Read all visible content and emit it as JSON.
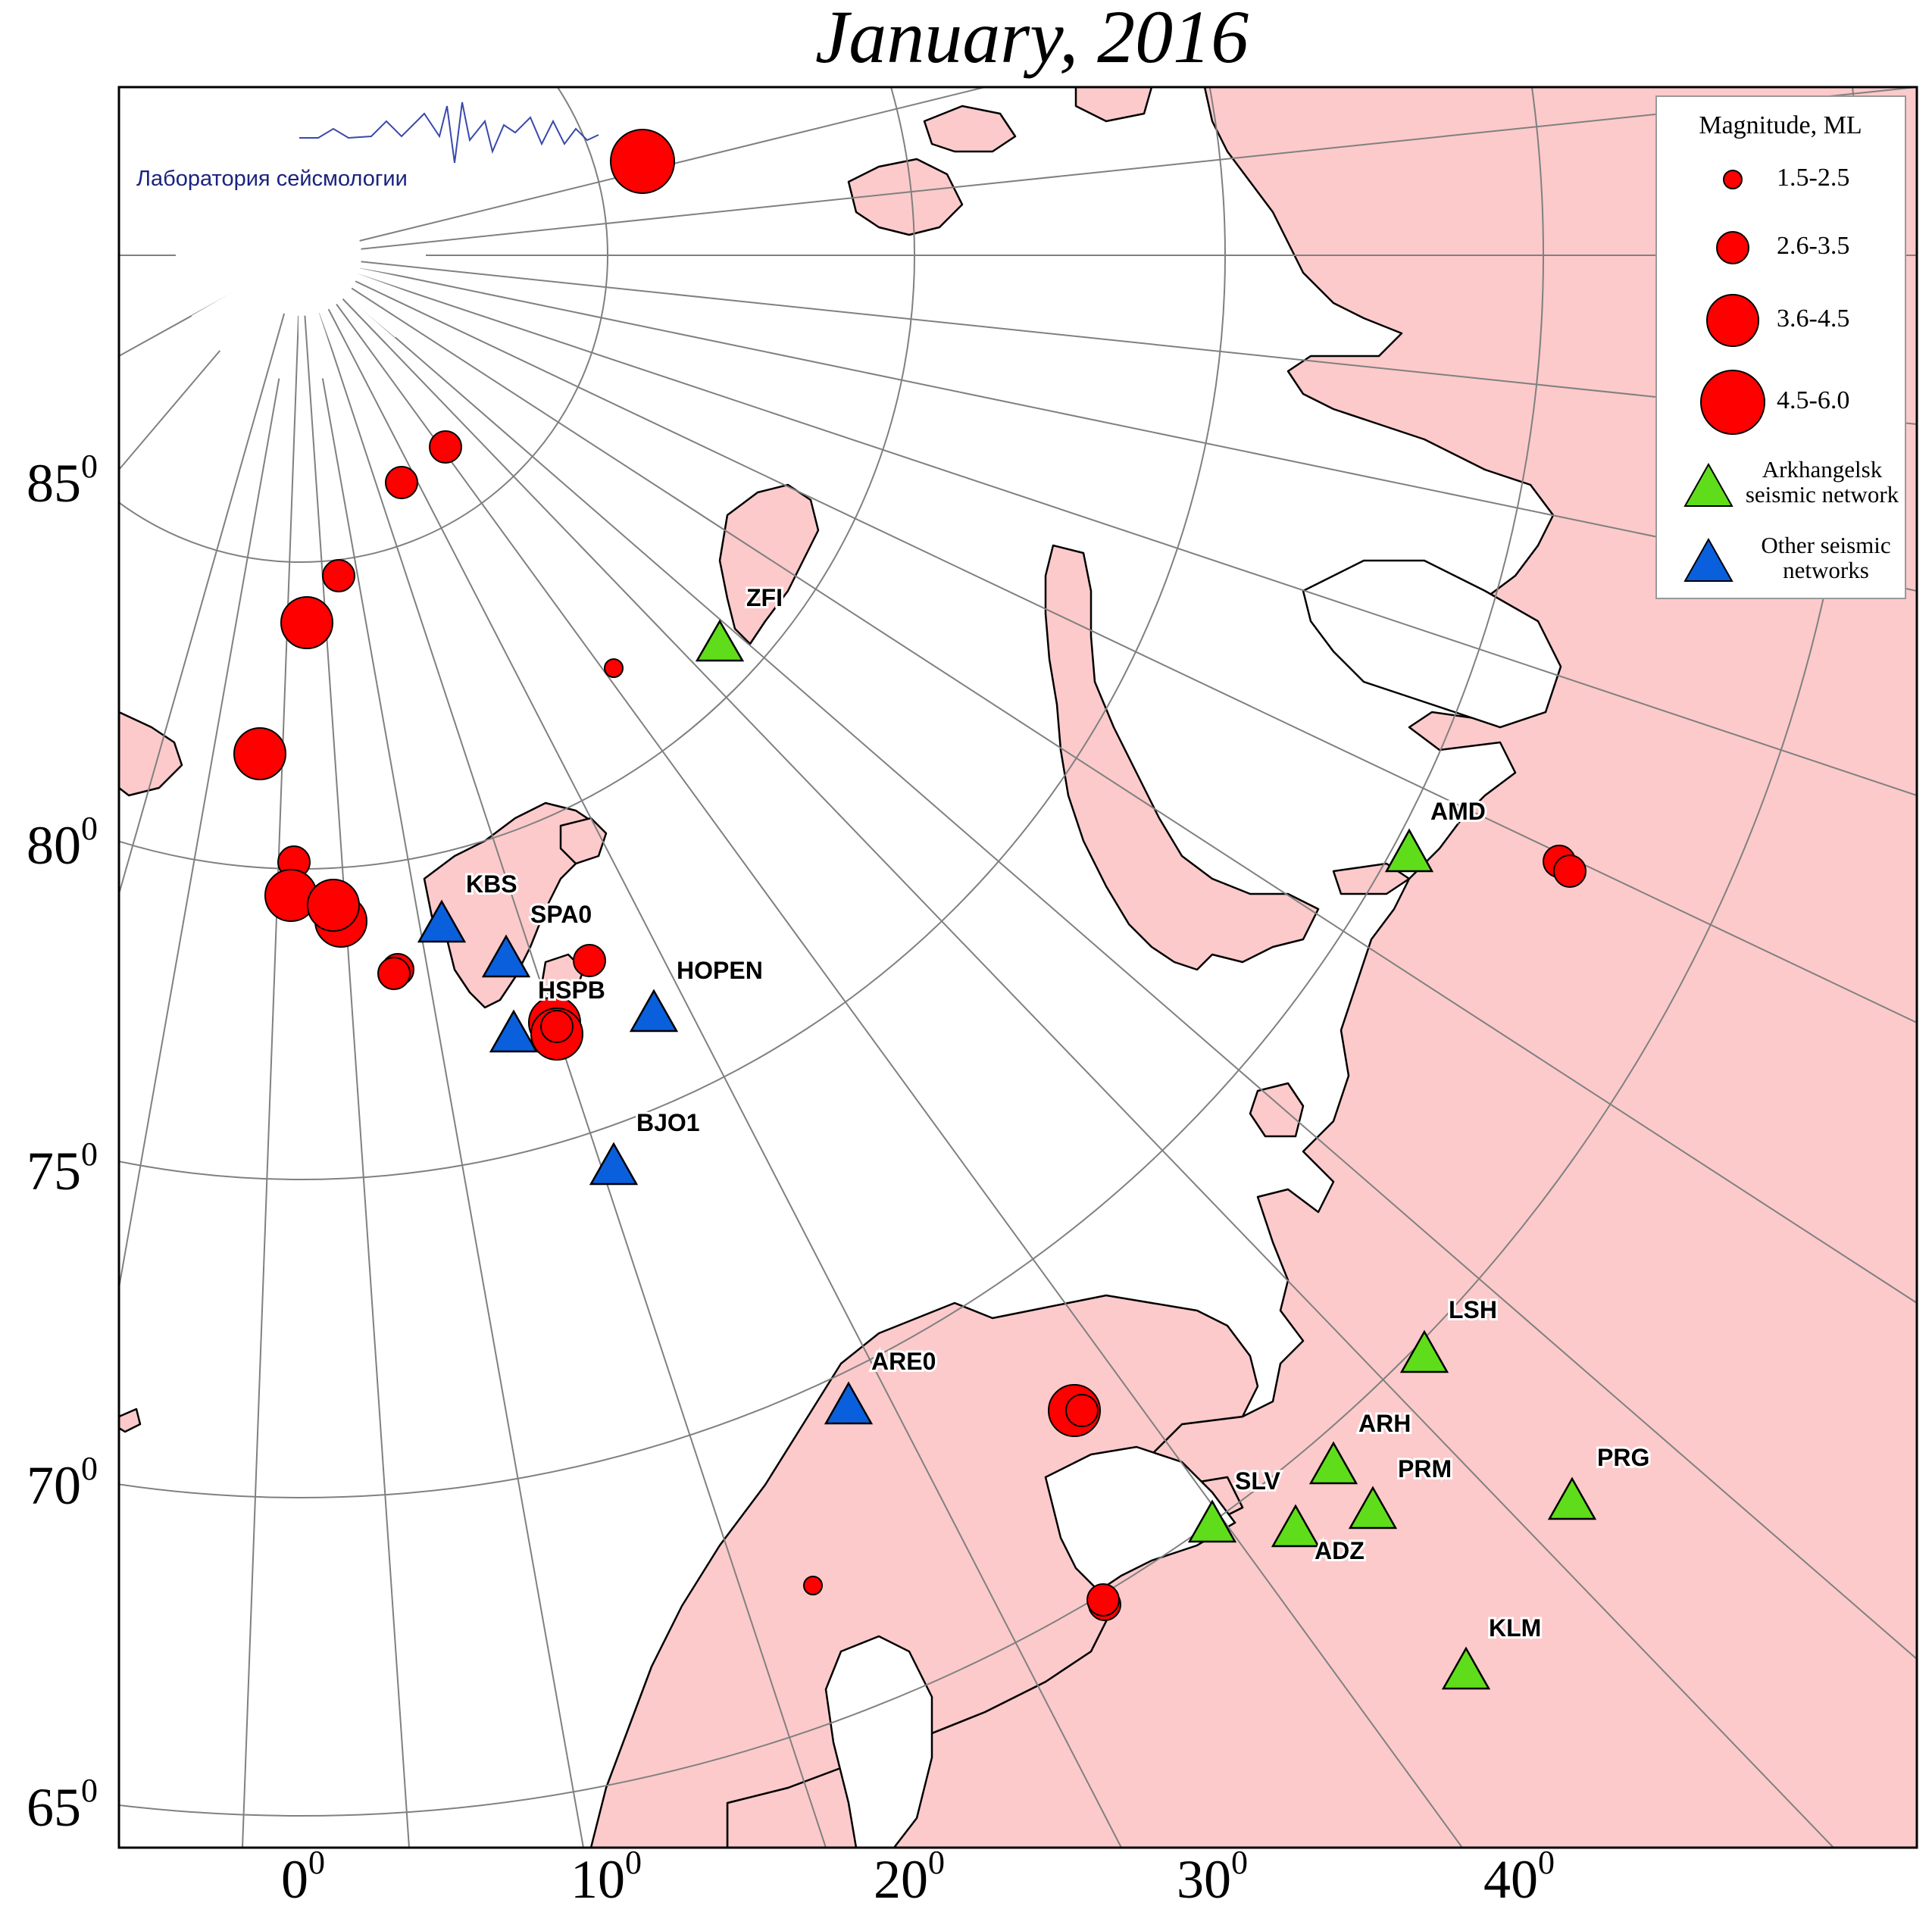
{
  "title": "January, 2016",
  "logo_text": "Лаборатория сейсмологии",
  "colors": {
    "land": "#fccacb",
    "coast": "#000000",
    "grid": "#808080",
    "event": "#ff0000",
    "arkhangelsk_station": "#5fdd1a",
    "other_station": "#0a5fdc",
    "logo": "#1a237e"
  },
  "lat_labels": [
    {
      "value": "85",
      "sup": "0"
    },
    {
      "value": "80",
      "sup": "0"
    },
    {
      "value": "75",
      "sup": "0"
    },
    {
      "value": "70",
      "sup": "0"
    },
    {
      "value": "65",
      "sup": "0"
    }
  ],
  "lon_labels": [
    {
      "value": "0",
      "sup": "0"
    },
    {
      "value": "10",
      "sup": "0"
    },
    {
      "value": "20",
      "sup": "0"
    },
    {
      "value": "30",
      "sup": "0"
    },
    {
      "value": "40",
      "sup": "0"
    }
  ],
  "legend": {
    "title": "Magnitude, ML",
    "sizes": [
      {
        "label": "1.5-2.5",
        "level": 1
      },
      {
        "label": "2.6-3.5",
        "level": 2
      },
      {
        "label": "3.6-4.5",
        "level": 3
      },
      {
        "label": "4.5-6.0",
        "level": 4
      }
    ],
    "arkhangelsk_line1": "Arkhangelsk",
    "arkhangelsk_line2": "seismic network",
    "other_line1": "Other seismic",
    "other_line2": "networks"
  },
  "stations": [
    {
      "code": "ZFI",
      "network": "arkhangelsk"
    },
    {
      "code": "AMD",
      "network": "arkhangelsk"
    },
    {
      "code": "KBS",
      "network": "other"
    },
    {
      "code": "SPA0",
      "network": "other"
    },
    {
      "code": "HSPB",
      "network": "other"
    },
    {
      "code": "HOPEN",
      "network": "other"
    },
    {
      "code": "BJO1",
      "network": "other"
    },
    {
      "code": "ARE0",
      "network": "other"
    },
    {
      "code": "LSH",
      "network": "arkhangelsk"
    },
    {
      "code": "ARH",
      "network": "arkhangelsk"
    },
    {
      "code": "PRM",
      "network": "arkhangelsk"
    },
    {
      "code": "SLV",
      "network": "arkhangelsk"
    },
    {
      "code": "ADZ",
      "network": "arkhangelsk"
    },
    {
      "code": "PRG",
      "network": "arkhangelsk"
    },
    {
      "code": "KLM",
      "network": "arkhangelsk"
    }
  ],
  "events": [
    {
      "magnitude_class": 4
    },
    {
      "magnitude_class": 2
    },
    {
      "magnitude_class": 2
    },
    {
      "magnitude_class": 2
    },
    {
      "magnitude_class": 3
    },
    {
      "magnitude_class": 1
    },
    {
      "magnitude_class": 3
    },
    {
      "magnitude_class": 2
    },
    {
      "magnitude_class": 3
    },
    {
      "magnitude_class": 3
    },
    {
      "magnitude_class": 3
    },
    {
      "magnitude_class": 2
    },
    {
      "magnitude_class": 2
    },
    {
      "magnitude_class": 2
    },
    {
      "magnitude_class": 3
    },
    {
      "magnitude_class": 3
    },
    {
      "magnitude_class": 2
    },
    {
      "magnitude_class": 3
    },
    {
      "magnitude_class": 2
    },
    {
      "magnitude_class": 1
    },
    {
      "magnitude_class": 2
    },
    {
      "magnitude_class": 2
    },
    {
      "magnitude_class": 2
    },
    {
      "magnitude_class": 2
    }
  ]
}
